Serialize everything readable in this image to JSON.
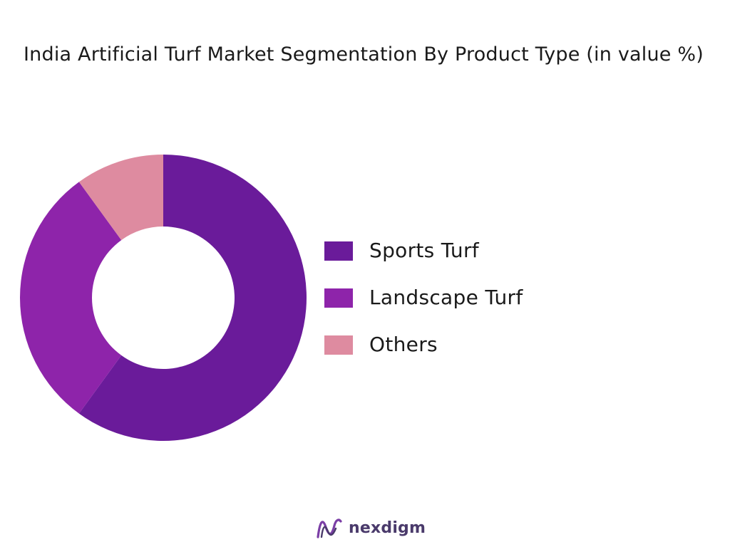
{
  "chart_data": {
    "type": "pie",
    "variant": "donut",
    "title": "India Artificial Turf Market Segmentation By Product Type (in value %)",
    "categories": [
      "Sports Turf",
      "Landscape Turf",
      "Others"
    ],
    "values": [
      60,
      30,
      10
    ],
    "colors": [
      "#6a1b9a",
      "#8e24aa",
      "#de8ba0"
    ],
    "legend_position": "right"
  },
  "brand": {
    "name": "nexdigm",
    "icon": "nexdigm-logo-icon",
    "colors": [
      "#7b3fa6",
      "#4a3a6b"
    ]
  }
}
